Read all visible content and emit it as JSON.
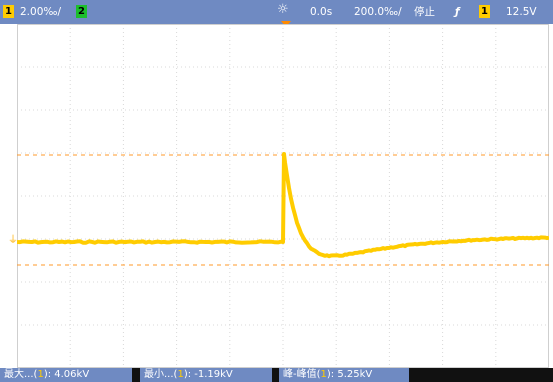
{
  "topbar": {
    "ch1_number": "1",
    "ch1_scale": "2.00‰/",
    "ch2_number": "2",
    "trigger_icon": "sun-trigger-icon",
    "time_offset": "0.0s",
    "time_scale": "200.0‰/",
    "run_state": "停止",
    "edge_symbol": "ƒ",
    "trigger_channel": "1",
    "trigger_level": "12.5V"
  },
  "ground_marker": "⏚",
  "measurements": [
    {
      "prefix": "最大...(",
      "channel": "1",
      "suffix": "): 4.06kV"
    },
    {
      "prefix": "最小...(",
      "channel": "1",
      "suffix": "): -1.19kV"
    },
    {
      "prefix": "峰-峰值(",
      "channel": "1",
      "suffix": "): 5.25kV"
    }
  ],
  "colors": {
    "trace": "#ffcc00",
    "cursor": "#ff8a00",
    "header": "#6f8ac2",
    "ch2": "#1cbf2b"
  }
}
